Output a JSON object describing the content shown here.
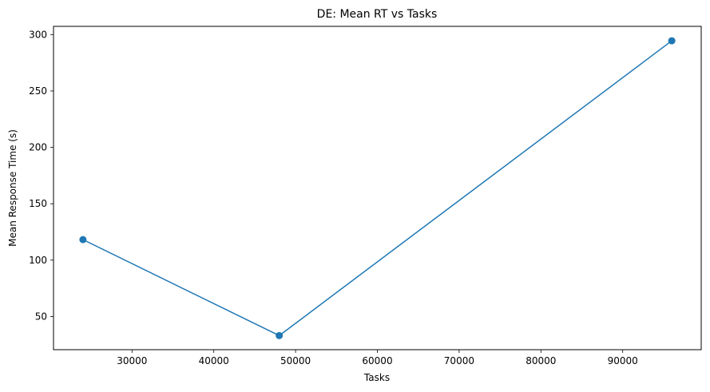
{
  "chart_data": {
    "type": "line",
    "title": "DE: Mean RT vs Tasks",
    "xlabel": "Tasks",
    "ylabel": "Mean Response Time (s)",
    "xlim": [
      20400,
      99600
    ],
    "ylim": [
      20.6,
      307.3
    ],
    "xticks": [
      30000,
      40000,
      50000,
      60000,
      70000,
      80000,
      90000
    ],
    "xtick_labels": [
      "30000",
      "40000",
      "50000",
      "60000",
      "70000",
      "80000",
      "90000"
    ],
    "yticks": [
      50,
      100,
      150,
      200,
      250,
      300
    ],
    "ytick_labels": [
      "50",
      "100",
      "150",
      "200",
      "250",
      "300"
    ],
    "grid": false,
    "series": [
      {
        "color": "#1f77b4",
        "marker": "circle",
        "x": [
          24000,
          48000,
          96000
        ],
        "y": [
          118.2,
          33.1,
          294.5
        ]
      }
    ]
  }
}
